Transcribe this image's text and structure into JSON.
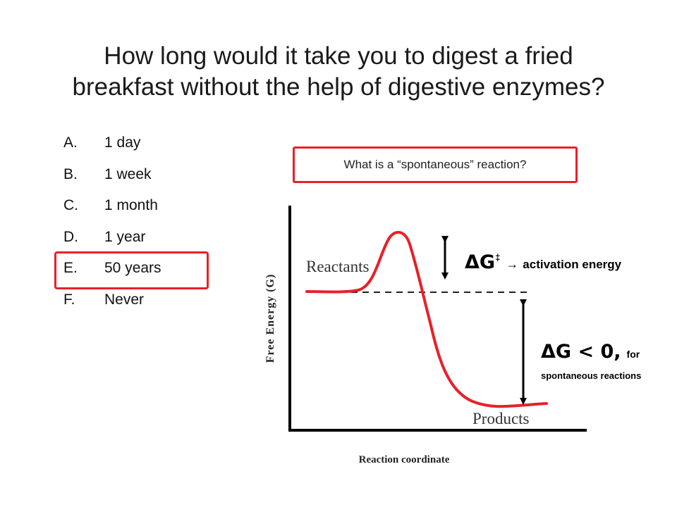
{
  "title": {
    "line1": "How long would it take you to digest a fried",
    "line2": "breakfast without the help of digestive enzymes?"
  },
  "options": [
    {
      "letter": "A.",
      "text": "1 day"
    },
    {
      "letter": "B.",
      "text": "1 week"
    },
    {
      "letter": "C.",
      "text": "1 month"
    },
    {
      "letter": "D.",
      "text": "1 year"
    },
    {
      "letter": "E.",
      "text": "50 years"
    },
    {
      "letter": "F.",
      "text": "Never"
    }
  ],
  "highlighted_option": "E.",
  "question_box": "What is a “spontaneous” reaction?",
  "diagram": {
    "reactants_label": "Reactants",
    "products_label": "Products",
    "y_axis_label": "Free Energy (G)",
    "x_axis_label": "Reaction coordinate",
    "activation": {
      "symbol": "ΔG",
      "superscript": "‡",
      "arrow": "→",
      "text": "activation energy"
    },
    "delta_g": {
      "main": "ΔG < 0,",
      "for_word": "for",
      "second_line": "spontaneous reactions"
    },
    "colors": {
      "curve": "#e8202a",
      "box_border": "#e8202a",
      "axes": "#000000",
      "dashes": "#000000"
    }
  }
}
